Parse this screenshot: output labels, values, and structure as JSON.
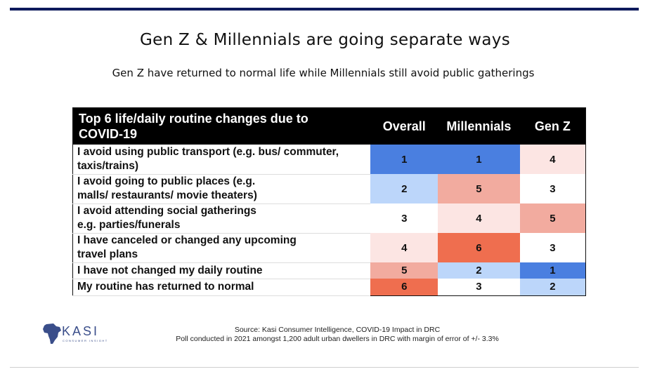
{
  "title": "Gen Z & Millennials are going separate ways",
  "subtitle": "Gen Z have returned to normal life while Millennials still avoid public gatherings",
  "table": {
    "header": {
      "label_line1": "Top 6 life/daily routine changes due to",
      "label_line2": "COVID-19",
      "col_overall": "Overall",
      "col_millennials": "Millennials",
      "col_genz": "Gen Z"
    },
    "rows": [
      {
        "line1": "I avoid using public transport (e.g. bus/ commuter,",
        "line2": "taxis/trains)",
        "overall": "1",
        "millennials": "1",
        "genz": "4"
      },
      {
        "line1": "I avoid going to public places (e.g.",
        "line2": "malls/ restaurants/ movie theaters)",
        "overall": "2",
        "millennials": "5",
        "genz": "3"
      },
      {
        "line1": "I avoid attending social gatherings",
        "line2": "e.g.  parties/funerals",
        "overall": "3",
        "millennials": "4",
        "genz": "5"
      },
      {
        "line1": "I have canceled or changed any upcoming",
        "line2": "travel plans",
        "overall": "4",
        "millennials": "6",
        "genz": "3"
      },
      {
        "line1": "I have not changed my daily routine",
        "line2": "",
        "overall": "5",
        "millennials": "2",
        "genz": "1"
      },
      {
        "line1": "My routine has returned to normal",
        "line2": "",
        "overall": "6",
        "millennials": "3",
        "genz": "2"
      }
    ],
    "rank_colors": {
      "1": "#4a7fe0",
      "2": "#bcd6fa",
      "3": "#ffffff",
      "4": "#fce5e3",
      "5": "#f2ab9f",
      "6": "#ef6e4f"
    }
  },
  "footer": {
    "source": "Source: Kasi Consumer Intelligence, COVID-19 Impact in DRC",
    "poll": "Poll conducted in 2021 amongst 1,200 adult urban dwellers in DRC with margin of error of +/- 3.3%"
  },
  "logo": {
    "text": "KASI",
    "tagline": "CONSUMER INSIGHT"
  }
}
